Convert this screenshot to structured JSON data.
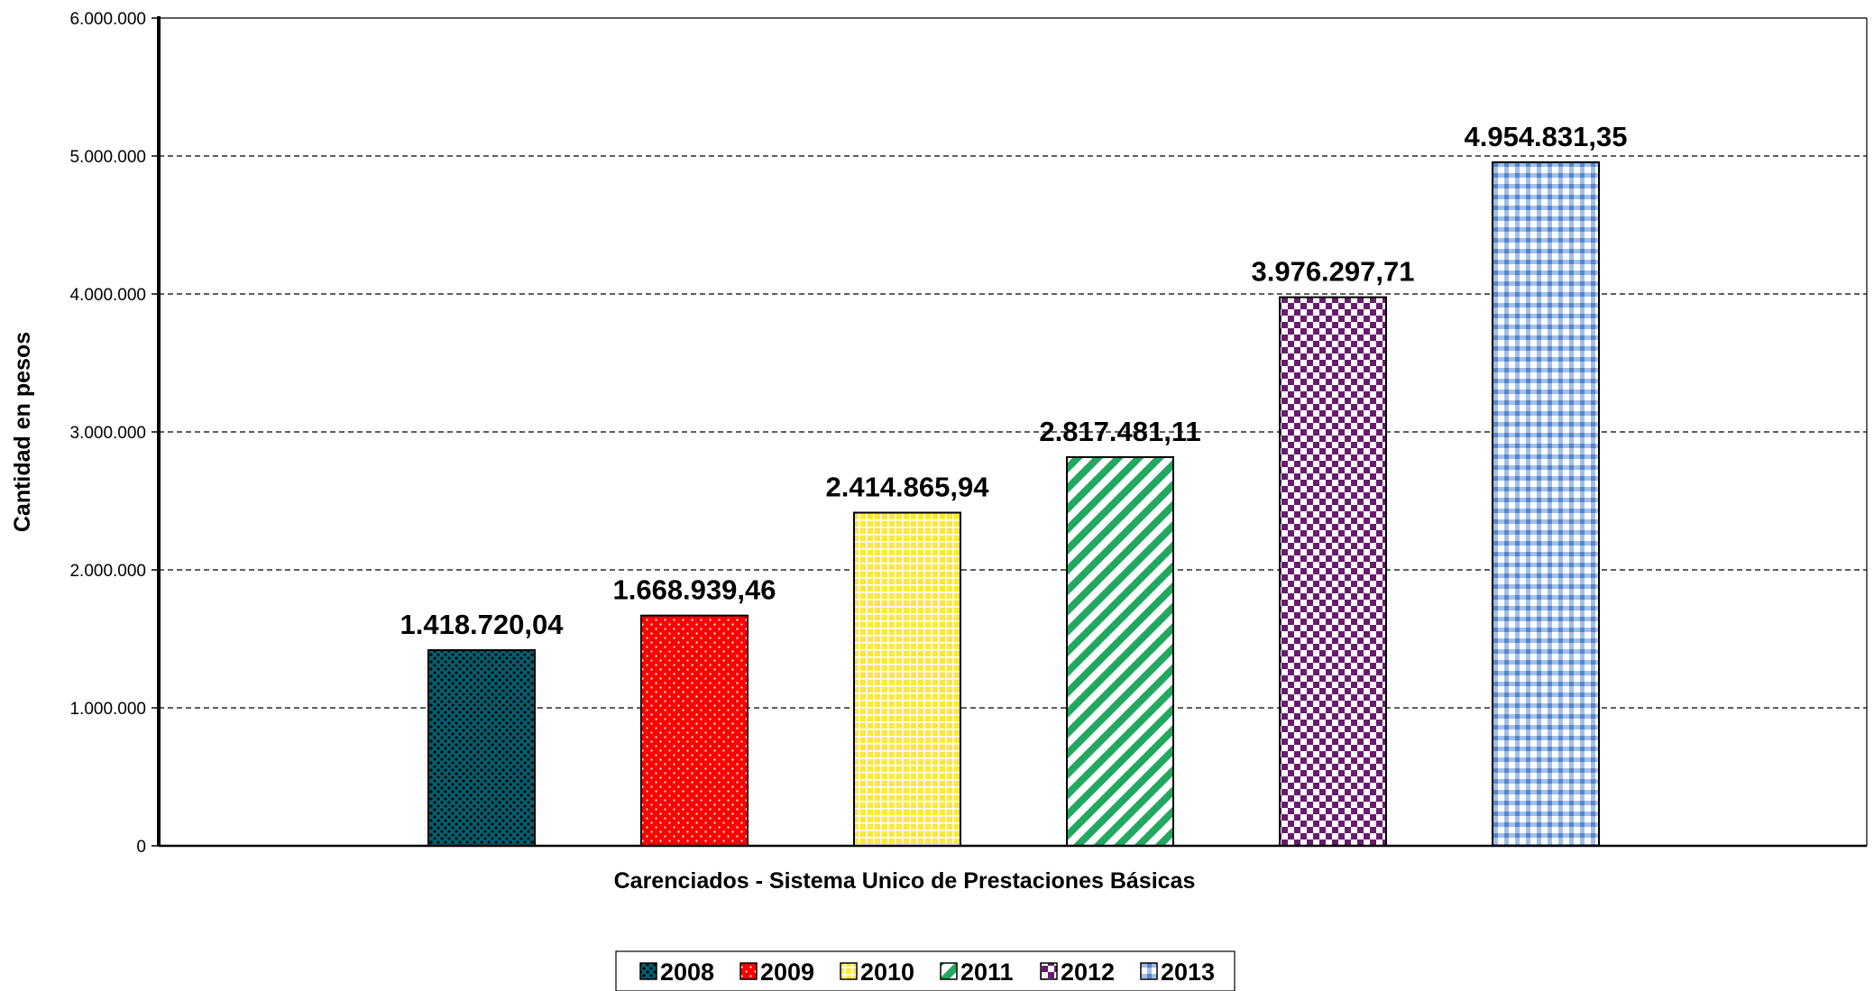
{
  "chart_data": {
    "type": "bar",
    "categories": [
      "Carenciados - Sistema Unico de Prestaciones Básicas"
    ],
    "series": [
      {
        "name": "2008",
        "values": [
          1418720.04
        ],
        "label": "1.418.720,04",
        "color": "#006070",
        "pattern": "dots-dense"
      },
      {
        "name": "2009",
        "values": [
          1668939.46
        ],
        "label": "1.668.939,46",
        "color": "#ff0000",
        "pattern": "dots-white"
      },
      {
        "name": "2010",
        "values": [
          2414865.94
        ],
        "label": "2.414.865,94",
        "color": "#ffe640",
        "pattern": "grid"
      },
      {
        "name": "2011",
        "values": [
          2817481.11
        ],
        "label": "2.817.481,11",
        "color": "#22a860",
        "pattern": "diagonal"
      },
      {
        "name": "2012",
        "values": [
          3976297.71
        ],
        "label": "3.976.297,71",
        "color": "#6a1a70",
        "pattern": "checker"
      },
      {
        "name": "2013",
        "values": [
          4954831.35
        ],
        "label": "4.954.831,35",
        "color": "#8fb4e8",
        "pattern": "plaid"
      }
    ],
    "title": "",
    "xlabel": "Carenciados - Sistema Unico de Prestaciones Básicas",
    "ylabel": "Cantidad en pesos",
    "ylim": [
      0,
      6000000
    ],
    "yticks": [
      {
        "value": 0,
        "label": "0"
      },
      {
        "value": 1000000,
        "label": "1.000.000"
      },
      {
        "value": 2000000,
        "label": "2.000.000"
      },
      {
        "value": 3000000,
        "label": "3.000.000"
      },
      {
        "value": 4000000,
        "label": "4.000.000"
      },
      {
        "value": 5000000,
        "label": "5.000.000"
      },
      {
        "value": 6000000,
        "label": "6.000.000"
      }
    ],
    "grid": true,
    "legend_position": "bottom"
  }
}
